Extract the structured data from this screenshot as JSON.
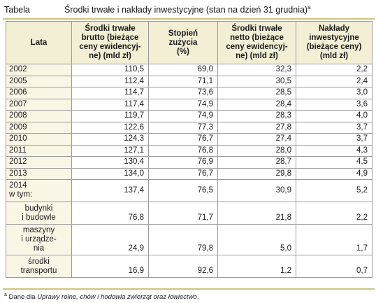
{
  "caption": {
    "label": "Tabela",
    "title": "Środki trwałe i nakłady inwestycyjne (stan na dzień 31 grudnia)",
    "note_mark": "a"
  },
  "headers": {
    "col0": [
      "Lata"
    ],
    "col1": [
      "Środki trwałe",
      "brutto (bieżące",
      "ceny ewidencyj-",
      "ne) (mld zł)"
    ],
    "col2": [
      "Stopień",
      "zużycia",
      "(%)"
    ],
    "col3": [
      "Środki trwałe",
      "netto (bieżące",
      "ceny ewidencyj-",
      "ne) (mld zł)"
    ],
    "col4": [
      "Nakłady",
      "inwestycyjne",
      "(bieżące ceny)",
      "(mld zł)"
    ]
  },
  "rows": [
    {
      "year": "2002",
      "c1": "110,5",
      "c2": "69,0",
      "c3": "32,3",
      "c4": "2,2"
    },
    {
      "year": "2005",
      "c1": "112,4",
      "c2": "71,1",
      "c3": "30,5",
      "c4": "2,4"
    },
    {
      "year": "2006",
      "c1": "114,7",
      "c2": "73,6",
      "c3": "28,5",
      "c4": "3,0"
    },
    {
      "year": "2007",
      "c1": "117,4",
      "c2": "74,9",
      "c3": "28,4",
      "c4": "3,6"
    },
    {
      "year": "2008",
      "c1": "119,7",
      "c2": "74,9",
      "c3": "28,3",
      "c4": "4,0"
    },
    {
      "year": "2009",
      "c1": "122,6",
      "c2": "77,3",
      "c3": "27,8",
      "c4": "3,7"
    },
    {
      "year": "2010",
      "c1": "124,3",
      "c2": "76,7",
      "c3": "27,4",
      "c4": "3,7"
    },
    {
      "year": "2011",
      "c1": "127,1",
      "c2": "76,8",
      "c3": "28,0",
      "c4": "4,3"
    },
    {
      "year": "2012",
      "c1": "130,4",
      "c2": "76,9",
      "c3": "28,7",
      "c4": "4,5"
    },
    {
      "year": "2013",
      "c1": "134,0",
      "c2": "76,7",
      "c3": "29,8",
      "c4": "4,9"
    }
  ],
  "row2014": {
    "year": "2014",
    "sub": "w tym:",
    "c1": "137,4",
    "c2": "76,5",
    "c3": "30,9",
    "c4": "5,2"
  },
  "subrows": [
    {
      "label": [
        "budynki",
        "i budowle"
      ],
      "c1": "76,8",
      "c2": "71,7",
      "c3": "21,8",
      "c4": "2,2"
    },
    {
      "label": [
        "maszyny",
        "i urządze-",
        "nia"
      ],
      "c1": "24,9",
      "c2": "79,8",
      "c3": "5,0",
      "c4": "1,7"
    },
    {
      "label": [
        "środki",
        "transportu"
      ],
      "c1": "16,9",
      "c2": "92,6",
      "c3": "1,2",
      "c4": "0,7"
    }
  ],
  "footnote": {
    "mark": "a",
    "prefix": " Dane dla ",
    "source": "Uprawy rolne, chów i hodowla zwierząt oraz łowiectwo",
    "suffix": "."
  }
}
